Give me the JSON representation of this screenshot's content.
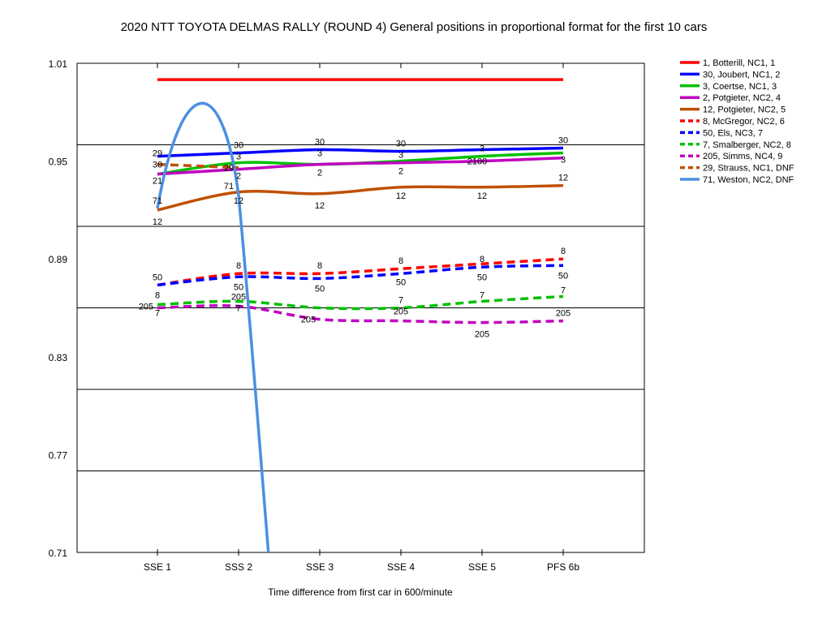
{
  "chart_data": {
    "type": "line",
    "title": "2020 NTT TOYOTA DELMAS RALLY (ROUND 4)  General positions in proportional format for the first 10 cars",
    "xlabel": "Time difference from first car in 600/minute",
    "ylabel": "",
    "categories": [
      "SSE 1",
      "SSS 2",
      "SSE 3",
      "SSE 4",
      "SSE 5",
      "PFS 6b"
    ],
    "yticks": [
      "1.01",
      "0.95",
      "0.89",
      "0.83",
      "0.77",
      "0.71"
    ],
    "ylim": [
      0.71,
      1.01
    ],
    "grid": "horizontal",
    "legend_position": "right",
    "series": [
      {
        "name": "1, Botterill, NC1, 1",
        "label": "1",
        "color": "#ff0000",
        "dash": false,
        "values": [
          1.0,
          1.0,
          1.0,
          1.0,
          1.0,
          1.0
        ]
      },
      {
        "name": "30, Joubert, NC1, 2",
        "label": "30",
        "color": "#0000ff",
        "dash": false,
        "values": [
          0.953,
          0.955,
          0.957,
          0.956,
          0.957,
          0.958
        ]
      },
      {
        "name": "3, Coertse, NC1, 3",
        "label": "3",
        "color": "#00c000",
        "dash": false,
        "values": [
          0.942,
          0.949,
          0.948,
          0.95,
          0.953,
          0.955
        ]
      },
      {
        "name": "2, Potgieter, NC2, 4",
        "label": "2",
        "color": "#c000c0",
        "dash": false,
        "values": [
          0.942,
          0.945,
          0.948,
          0.949,
          0.95,
          0.952
        ]
      },
      {
        "name": "12, Potgieter, NC2, 5",
        "label": "12",
        "color": "#c05000",
        "dash": false,
        "values": [
          0.92,
          0.931,
          0.93,
          0.934,
          0.934,
          0.935
        ]
      },
      {
        "name": "8, McGregor, NC2, 6",
        "label": "8",
        "color": "#ff0000",
        "dash": true,
        "values": [
          0.874,
          0.881,
          0.881,
          0.884,
          0.887,
          0.89
        ]
      },
      {
        "name": "50, Els, NC3, 7",
        "label": "50",
        "color": "#0000ff",
        "dash": true,
        "values": [
          0.874,
          0.879,
          0.878,
          0.881,
          0.885,
          0.886
        ]
      },
      {
        "name": "7, Smalberger, NC2, 8",
        "label": "7",
        "color": "#00c000",
        "dash": true,
        "values": [
          0.862,
          0.864,
          0.86,
          0.86,
          0.864,
          0.867
        ]
      },
      {
        "name": "205, Simms, NC4, 9",
        "label": "205",
        "color": "#c000c0",
        "dash": true,
        "values": [
          0.86,
          0.861,
          0.853,
          0.852,
          0.851,
          0.852
        ]
      },
      {
        "name": "29, Strauss, NC1, DNF",
        "label": "29",
        "color": "#c05000",
        "dash": true,
        "values": [
          0.948,
          0.946,
          null,
          null,
          null,
          null
        ]
      },
      {
        "name": "71, Weston, NC2, DNF",
        "label": "71",
        "color": "#4a90e2",
        "dash": false,
        "values": [
          0.921,
          0.929,
          null,
          null,
          null,
          null
        ]
      }
    ],
    "data_labels": [
      {
        "text": "29",
        "cat": 0,
        "y": 0.955
      },
      {
        "text": "30",
        "cat": 0,
        "y": 0.948
      },
      {
        "text": "21",
        "cat": 0,
        "y": 0.938
      },
      {
        "text": "71",
        "cat": 0,
        "y": 0.926
      },
      {
        "text": "12",
        "cat": 0,
        "y": 0.913
      },
      {
        "text": "50",
        "cat": 0,
        "y": 0.879
      },
      {
        "text": "8",
        "cat": 0,
        "y": 0.868
      },
      {
        "text": "205",
        "cat": 0,
        "y": 0.861,
        "dx": -14
      },
      {
        "text": "7",
        "cat": 0,
        "y": 0.857
      },
      {
        "text": "30",
        "cat": 1,
        "y": 0.96
      },
      {
        "text": "3",
        "cat": 1,
        "y": 0.953
      },
      {
        "text": "29",
        "cat": 1,
        "y": 0.946,
        "dx": -12
      },
      {
        "text": "2",
        "cat": 1,
        "y": 0.941
      },
      {
        "text": "71",
        "cat": 1,
        "y": 0.935,
        "dx": -12
      },
      {
        "text": "12",
        "cat": 1,
        "y": 0.926
      },
      {
        "text": "8",
        "cat": 1,
        "y": 0.886
      },
      {
        "text": "50",
        "cat": 1,
        "y": 0.873
      },
      {
        "text": "205",
        "cat": 1,
        "y": 0.867
      },
      {
        "text": "7",
        "cat": 1,
        "y": 0.86
      },
      {
        "text": "30",
        "cat": 2,
        "y": 0.962
      },
      {
        "text": "3",
        "cat": 2,
        "y": 0.955
      },
      {
        "text": "2",
        "cat": 2,
        "y": 0.943
      },
      {
        "text": "12",
        "cat": 2,
        "y": 0.923
      },
      {
        "text": "8",
        "cat": 2,
        "y": 0.886
      },
      {
        "text": "50",
        "cat": 2,
        "y": 0.872
      },
      {
        "text": "205",
        "cat": 2,
        "y": 0.853,
        "dx": -14
      },
      {
        "text": "30",
        "cat": 3,
        "y": 0.961
      },
      {
        "text": "3",
        "cat": 3,
        "y": 0.954
      },
      {
        "text": "2",
        "cat": 3,
        "y": 0.944
      },
      {
        "text": "12",
        "cat": 3,
        "y": 0.929
      },
      {
        "text": "8",
        "cat": 3,
        "y": 0.889
      },
      {
        "text": "50",
        "cat": 3,
        "y": 0.876
      },
      {
        "text": "7",
        "cat": 3,
        "y": 0.865
      },
      {
        "text": "205",
        "cat": 3,
        "y": 0.858
      },
      {
        "text": "3",
        "cat": 4,
        "y": 0.958
      },
      {
        "text": "2̶̶0",
        "cat": 4,
        "y": 0.95,
        "dx": -6,
        "plain": "2100"
      },
      {
        "text": "12",
        "cat": 4,
        "y": 0.929
      },
      {
        "text": "8",
        "cat": 4,
        "y": 0.89
      },
      {
        "text": "50",
        "cat": 4,
        "y": 0.879
      },
      {
        "text": "7",
        "cat": 4,
        "y": 0.868
      },
      {
        "text": "205",
        "cat": 4,
        "y": 0.844
      },
      {
        "text": "30",
        "cat": 5,
        "y": 0.963
      },
      {
        "text": "3",
        "cat": 5,
        "y": 0.951
      },
      {
        "text": "12",
        "cat": 5,
        "y": 0.94
      },
      {
        "text": "8",
        "cat": 5,
        "y": 0.895
      },
      {
        "text": "50",
        "cat": 5,
        "y": 0.88
      },
      {
        "text": "7",
        "cat": 5,
        "y": 0.871
      },
      {
        "text": "205",
        "cat": 5,
        "y": 0.857
      }
    ]
  }
}
